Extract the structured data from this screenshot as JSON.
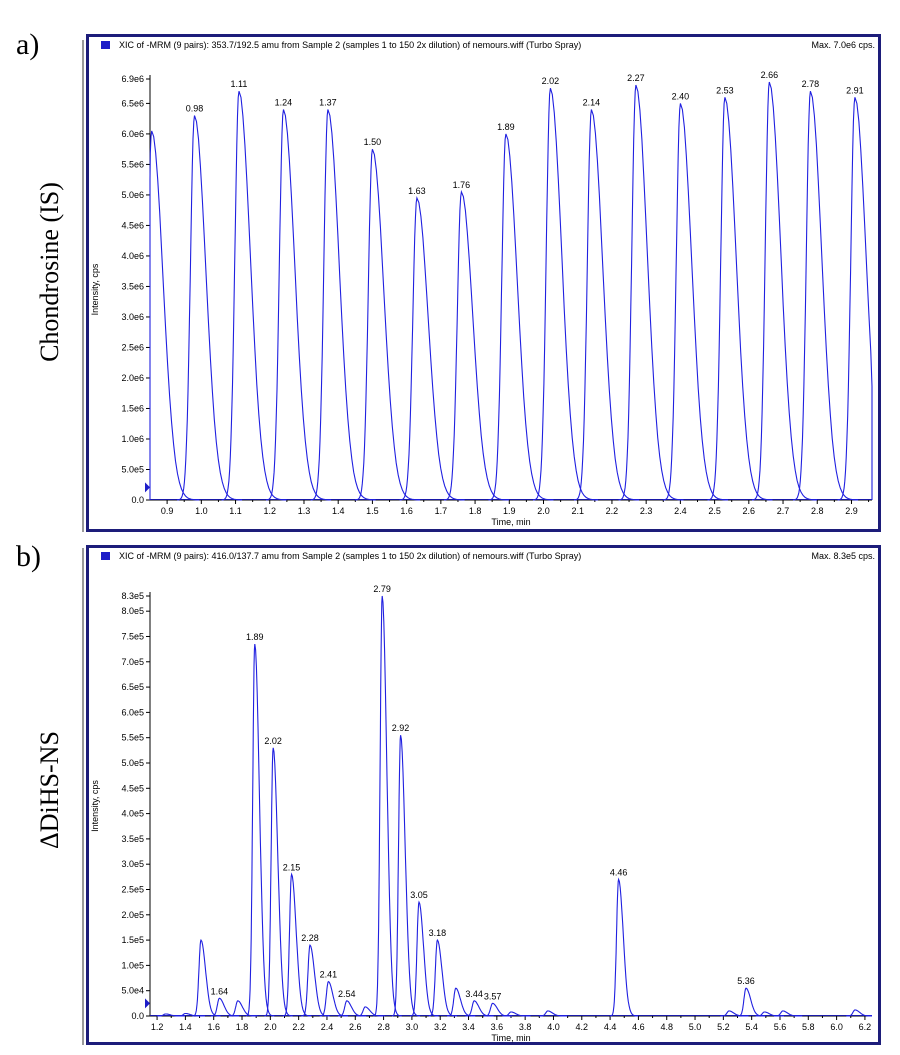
{
  "panels": [
    {
      "letter": "a)",
      "side_label": "Chondrosine (IS)",
      "header": "XIC of -MRM (9 pairs): 353.7/192.5 amu from Sample 2 (samples 1 to 150 2x dilution) of nemours.wiff (Turbo Spray)",
      "max_label": "Max. 7.0e6 cps."
    },
    {
      "letter": "b)",
      "side_label": "ΔDiHS-NS",
      "header": "XIC of -MRM (9 pairs): 416.0/137.7 amu from Sample 2 (samples 1 to 150 2x dilution) of nemours.wiff (Turbo Spray)",
      "max_label": "Max. 8.3e5 cps."
    }
  ],
  "chart_data": [
    {
      "type": "line",
      "xlabel": "Time, min",
      "ylabel": "Intensity, cps",
      "xlim": [
        0.85,
        2.96
      ],
      "ylim": [
        0,
        6900000
      ],
      "xticks": [
        0.9,
        1.0,
        1.1,
        1.2,
        1.3,
        1.4,
        1.5,
        1.6,
        1.7,
        1.8,
        1.9,
        2.0,
        2.1,
        2.2,
        2.3,
        2.4,
        2.5,
        2.6,
        2.7,
        2.8,
        2.9
      ],
      "xtick_labels": [
        "0.9",
        "1.0",
        "1.1",
        "1.2",
        "1.3",
        "1.4",
        "1.5",
        "1.6",
        "1.7",
        "1.8",
        "1.9",
        "2.0",
        "2.1",
        "2.2",
        "2.3",
        "2.4",
        "2.5",
        "2.6",
        "2.7",
        "2.8",
        "2.9"
      ],
      "yticks": [
        0,
        500000,
        1000000,
        1500000,
        2000000,
        2500000,
        3000000,
        3500000,
        4000000,
        4500000,
        5000000,
        5500000,
        6000000,
        6500000,
        6900000
      ],
      "ytick_labels": [
        "0.0",
        "5.0e5",
        "1.0e6",
        "1.5e6",
        "2.0e6",
        "2.5e6",
        "3.0e6",
        "3.5e6",
        "4.0e6",
        "4.5e6",
        "5.0e6",
        "5.5e6",
        "6.0e6",
        "6.5e6",
        "6.9e6"
      ],
      "peaks": [
        {
          "x": 0.855,
          "y": 6050000,
          "label": ""
        },
        {
          "x": 0.98,
          "y": 6300000,
          "label": "0.98"
        },
        {
          "x": 1.11,
          "y": 6700000,
          "label": "1.11"
        },
        {
          "x": 1.24,
          "y": 6400000,
          "label": "1.24"
        },
        {
          "x": 1.37,
          "y": 6400000,
          "label": "1.37"
        },
        {
          "x": 1.5,
          "y": 5750000,
          "label": "1.50"
        },
        {
          "x": 1.63,
          "y": 4950000,
          "label": "1.63"
        },
        {
          "x": 1.76,
          "y": 5050000,
          "label": "1.76"
        },
        {
          "x": 1.89,
          "y": 6000000,
          "label": "1.89"
        },
        {
          "x": 2.02,
          "y": 6750000,
          "label": "2.02"
        },
        {
          "x": 2.14,
          "y": 6400000,
          "label": "2.14"
        },
        {
          "x": 2.27,
          "y": 6800000,
          "label": "2.27"
        },
        {
          "x": 2.4,
          "y": 6500000,
          "label": "2.40"
        },
        {
          "x": 2.53,
          "y": 6600000,
          "label": "2.53"
        },
        {
          "x": 2.66,
          "y": 6850000,
          "label": "2.66"
        },
        {
          "x": 2.78,
          "y": 6700000,
          "label": "2.78"
        },
        {
          "x": 2.91,
          "y": 6600000,
          "label": "2.91"
        }
      ]
    },
    {
      "type": "line",
      "xlabel": "Time, min",
      "ylabel": "Intensity, cps",
      "xlim": [
        1.15,
        6.25
      ],
      "ylim": [
        0,
        830000
      ],
      "xticks": [
        1.2,
        1.4,
        1.6,
        1.8,
        2.0,
        2.2,
        2.4,
        2.6,
        2.8,
        3.0,
        3.2,
        3.4,
        3.6,
        3.8,
        4.0,
        4.2,
        4.4,
        4.6,
        4.8,
        5.0,
        5.2,
        5.4,
        5.6,
        5.8,
        6.0,
        6.2
      ],
      "xtick_labels": [
        "1.2",
        "1.4",
        "1.6",
        "1.8",
        "2.0",
        "2.2",
        "2.4",
        "2.6",
        "2.8",
        "3.0",
        "3.2",
        "3.4",
        "3.6",
        "3.8",
        "4.0",
        "4.2",
        "4.4",
        "4.6",
        "4.8",
        "5.0",
        "5.2",
        "5.4",
        "5.6",
        "5.8",
        "6.0",
        "6.2"
      ],
      "yticks": [
        0,
        50000,
        100000,
        150000,
        200000,
        250000,
        300000,
        350000,
        400000,
        450000,
        500000,
        550000,
        600000,
        650000,
        700000,
        750000,
        800000,
        830000
      ],
      "ytick_labels": [
        "0.0",
        "5.0e4",
        "1.0e5",
        "1.5e5",
        "2.0e5",
        "2.5e5",
        "3.0e5",
        "3.5e5",
        "4.0e5",
        "4.5e5",
        "5.0e5",
        "5.5e5",
        "6.0e5",
        "6.5e5",
        "7.0e5",
        "7.5e5",
        "8.0e5",
        "8.3e5"
      ],
      "peaks": [
        {
          "x": 1.26,
          "y": 4000,
          "label": ""
        },
        {
          "x": 1.4,
          "y": 5000,
          "label": ""
        },
        {
          "x": 1.51,
          "y": 150000,
          "label": ""
        },
        {
          "x": 1.64,
          "y": 35000,
          "label": "1.64"
        },
        {
          "x": 1.77,
          "y": 30000,
          "label": ""
        },
        {
          "x": 1.89,
          "y": 735000,
          "label": "1.89"
        },
        {
          "x": 2.02,
          "y": 530000,
          "label": "2.02"
        },
        {
          "x": 2.15,
          "y": 280000,
          "label": "2.15"
        },
        {
          "x": 2.28,
          "y": 140000,
          "label": "2.28"
        },
        {
          "x": 2.41,
          "y": 68000,
          "label": "2.41"
        },
        {
          "x": 2.54,
          "y": 30000,
          "label": "2.54"
        },
        {
          "x": 2.67,
          "y": 18000,
          "label": ""
        },
        {
          "x": 2.79,
          "y": 830000,
          "label": "2.79"
        },
        {
          "x": 2.92,
          "y": 555000,
          "label": "2.92"
        },
        {
          "x": 3.05,
          "y": 225000,
          "label": "3.05"
        },
        {
          "x": 3.18,
          "y": 150000,
          "label": "3.18"
        },
        {
          "x": 3.31,
          "y": 55000,
          "label": ""
        },
        {
          "x": 3.44,
          "y": 30000,
          "label": "3.44"
        },
        {
          "x": 3.57,
          "y": 25000,
          "label": "3.57"
        },
        {
          "x": 3.7,
          "y": 8000,
          "label": ""
        },
        {
          "x": 3.96,
          "y": 10000,
          "label": ""
        },
        {
          "x": 4.46,
          "y": 270000,
          "label": "4.46"
        },
        {
          "x": 5.24,
          "y": 10000,
          "label": ""
        },
        {
          "x": 5.36,
          "y": 55000,
          "label": "5.36"
        },
        {
          "x": 5.49,
          "y": 8000,
          "label": ""
        },
        {
          "x": 5.62,
          "y": 10000,
          "label": ""
        },
        {
          "x": 6.13,
          "y": 12000,
          "label": ""
        }
      ]
    }
  ]
}
